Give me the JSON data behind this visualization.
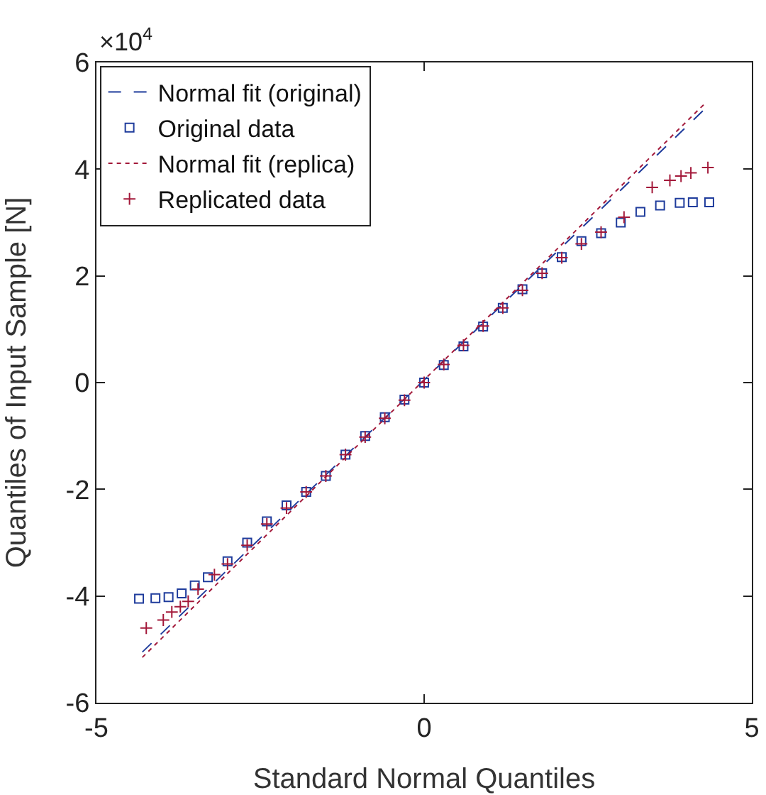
{
  "chart_data": {
    "type": "scatter",
    "xlabel": "Standard Normal Quantiles",
    "ylabel": "Quantiles of Input Sample [N]",
    "annotations": [
      "×10$^{4}$"
    ],
    "xlim": [
      -5,
      5
    ],
    "xticks": [
      -5,
      0,
      5
    ],
    "ylim": [
      -6,
      6
    ],
    "yticks": [
      -6,
      -4,
      -2,
      0,
      2,
      4,
      6
    ],
    "grid": false,
    "legend": "top left",
    "series": [
      {
        "name": "Normal fit (original)",
        "type": "line",
        "color": "#1f3c9c",
        "line_style": "dashed",
        "marker": "none",
        "x": [
          -4.3,
          4.3
        ],
        "values": [
          -5.05,
          5.15
        ]
      },
      {
        "name": "Original data",
        "color": "#1f3c9c",
        "marker": "square",
        "x": [
          -4.35,
          -4.1,
          -3.9,
          -3.7,
          -3.5,
          -3.3,
          -3.0,
          -2.7,
          -2.4,
          -2.1,
          -1.8,
          -1.5,
          -1.2,
          -0.9,
          -0.6,
          -0.3,
          0,
          0.3,
          0.6,
          0.9,
          1.2,
          1.5,
          1.8,
          2.1,
          2.4,
          2.7,
          3.0,
          3.3,
          3.6,
          3.9,
          4.1,
          4.35
        ],
        "values": [
          -4.05,
          -4.04,
          -4.02,
          -3.95,
          -3.8,
          -3.65,
          -3.35,
          -3.0,
          -2.6,
          -2.3,
          -2.05,
          -1.75,
          -1.35,
          -1.0,
          -0.65,
          -0.32,
          0,
          0.33,
          0.68,
          1.05,
          1.4,
          1.75,
          2.05,
          2.35,
          2.65,
          2.8,
          3.0,
          3.2,
          3.32,
          3.37,
          3.38,
          3.38
        ]
      },
      {
        "name": "Normal fit (replica)",
        "type": "line",
        "color": "#a3193a",
        "line_style": "dotted",
        "marker": "none",
        "x": [
          -4.3,
          4.3
        ],
        "values": [
          -5.15,
          5.25
        ]
      },
      {
        "name": "Replicated data",
        "color": "#a3193a",
        "marker": "cross",
        "x": [
          -4.24,
          -3.98,
          -3.85,
          -3.72,
          -3.6,
          -3.45,
          -3.2,
          -3.0,
          -2.7,
          -2.4,
          -2.1,
          -1.8,
          -1.5,
          -1.2,
          -0.9,
          -0.6,
          -0.3,
          0,
          0.3,
          0.6,
          0.9,
          1.2,
          1.5,
          1.8,
          2.1,
          2.4,
          2.7,
          3.05,
          3.48,
          3.75,
          3.92,
          4.07,
          4.33
        ],
        "values": [
          -4.6,
          -4.45,
          -4.3,
          -4.2,
          -4.1,
          -3.87,
          -3.6,
          -3.4,
          -3.05,
          -2.65,
          -2.35,
          -2.05,
          -1.75,
          -1.35,
          -1.02,
          -0.67,
          -0.33,
          0,
          0.34,
          0.7,
          1.06,
          1.4,
          1.73,
          2.05,
          2.34,
          2.6,
          2.82,
          3.1,
          3.66,
          3.79,
          3.87,
          3.93,
          4.03
        ]
      }
    ]
  }
}
